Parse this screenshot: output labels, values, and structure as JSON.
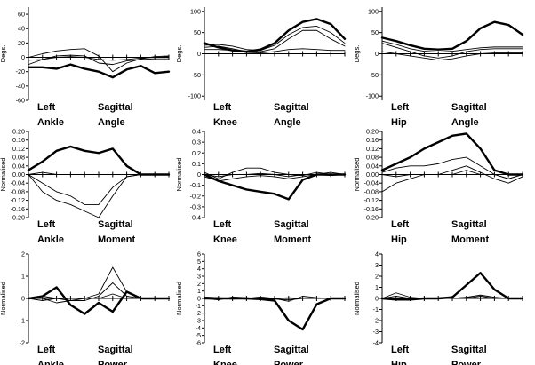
{
  "chart_data": [
    {
      "id": "ankle-angle",
      "type": "line",
      "ylabel": "Degs.",
      "title_lines": [
        [
          "Left",
          "Sagittal"
        ],
        [
          "Ankle",
          "Angle"
        ]
      ],
      "ylim": [
        -60,
        70
      ],
      "yticks": [
        60,
        40,
        20,
        0,
        -20,
        -40,
        -60
      ],
      "x": [
        0,
        10,
        20,
        30,
        40,
        50,
        60,
        70,
        80,
        90,
        100
      ],
      "series": [
        {
          "values": [
            -14,
            -14,
            -16,
            -10,
            -16,
            -20,
            -28,
            -17,
            -12,
            -22,
            -20
          ],
          "weight": "bold"
        },
        {
          "values": [
            0,
            5,
            9,
            11,
            12,
            2,
            -20,
            -8,
            -2,
            1,
            2
          ],
          "weight": "thin"
        },
        {
          "values": [
            -10,
            -3,
            2,
            3,
            2,
            -8,
            -10,
            -5,
            -3,
            -2,
            -2
          ],
          "weight": "thin"
        },
        {
          "values": [
            -4,
            -3,
            0,
            1,
            0,
            -3,
            -4,
            -3,
            -1,
            0,
            1
          ],
          "weight": "thin"
        }
      ]
    },
    {
      "id": "knee-angle",
      "type": "line",
      "ylabel": "Degs.",
      "title_lines": [
        [
          "Left",
          "Sagittal"
        ],
        [
          "Knee",
          "Angle"
        ]
      ],
      "ylim": [
        -110,
        110
      ],
      "yticks": [
        100,
        50,
        0,
        -50,
        -100
      ],
      "x": [
        0,
        10,
        20,
        30,
        40,
        50,
        60,
        70,
        80,
        90,
        100
      ],
      "series": [
        {
          "values": [
            25,
            15,
            8,
            5,
            10,
            25,
            55,
            75,
            82,
            70,
            35
          ],
          "weight": "bold"
        },
        {
          "values": [
            20,
            22,
            18,
            10,
            8,
            20,
            45,
            62,
            65,
            50,
            25
          ],
          "weight": "thin"
        },
        {
          "values": [
            15,
            18,
            12,
            5,
            5,
            12,
            35,
            55,
            55,
            35,
            18
          ],
          "weight": "thin"
        },
        {
          "values": [
            10,
            10,
            8,
            3,
            2,
            5,
            10,
            12,
            10,
            8,
            8
          ],
          "weight": "thin"
        }
      ]
    },
    {
      "id": "hip-angle",
      "type": "line",
      "ylabel": "Degs.",
      "title_lines": [
        [
          "Left",
          "Sagittal"
        ],
        [
          "Hip",
          "Angle"
        ]
      ],
      "ylim": [
        -110,
        110
      ],
      "yticks": [
        100,
        50,
        0,
        -50,
        -100
      ],
      "x": [
        0,
        10,
        20,
        30,
        40,
        50,
        60,
        70,
        80,
        90,
        100
      ],
      "series": [
        {
          "values": [
            38,
            30,
            20,
            12,
            10,
            12,
            30,
            60,
            75,
            68,
            45
          ],
          "weight": "bold"
        },
        {
          "values": [
            30,
            22,
            12,
            6,
            4,
            6,
            10,
            14,
            16,
            16,
            16
          ],
          "weight": "thin"
        },
        {
          "values": [
            25,
            15,
            5,
            -5,
            -10,
            -5,
            5,
            10,
            12,
            12,
            12
          ],
          "weight": "thin"
        },
        {
          "values": [
            5,
            0,
            -5,
            -10,
            -15,
            -12,
            -5,
            0,
            2,
            2,
            2
          ],
          "weight": "thin"
        }
      ]
    },
    {
      "id": "ankle-moment",
      "type": "line",
      "ylabel": "Normalised",
      "title_lines": [
        [
          "Left",
          "Sagittal"
        ],
        [
          "Ankle",
          "Moment"
        ]
      ],
      "ylim": [
        -0.2,
        0.2
      ],
      "yticks": [
        0.2,
        0.16,
        0.12,
        0.08,
        0.04,
        0.0,
        -0.04,
        -0.08,
        -0.12,
        -0.16,
        -0.2
      ],
      "ytick_labels": [
        "0.20",
        "0.16",
        "0.12",
        "0.08",
        "0.04",
        "0.00",
        "-0.04",
        "-0.08",
        "-0.12",
        "-0.16",
        "-0.20"
      ],
      "x": [
        0,
        10,
        20,
        30,
        40,
        50,
        60,
        70,
        80,
        90,
        100
      ],
      "series": [
        {
          "values": [
            0.02,
            0.06,
            0.11,
            0.13,
            0.11,
            0.1,
            0.12,
            0.04,
            0.0,
            0.0,
            0.0
          ],
          "weight": "bold"
        },
        {
          "values": [
            0.0,
            -0.08,
            -0.12,
            -0.14,
            -0.17,
            -0.2,
            -0.1,
            -0.01,
            0.0,
            0.0,
            0.0
          ],
          "weight": "thin"
        },
        {
          "values": [
            0.0,
            -0.04,
            -0.08,
            -0.1,
            -0.14,
            -0.14,
            -0.06,
            -0.01,
            0.0,
            0.0,
            0.0
          ],
          "weight": "thin"
        },
        {
          "values": [
            0.0,
            0.01,
            0.0,
            0.0,
            0.0,
            0.0,
            0.0,
            0.0,
            0.0,
            0.0,
            0.0
          ],
          "weight": "thin"
        }
      ]
    },
    {
      "id": "knee-moment",
      "type": "line",
      "ylabel": "Normalised",
      "title_lines": [
        [
          "Left",
          "Sagittal"
        ],
        [
          "Knee",
          "Moment"
        ]
      ],
      "ylim": [
        -0.4,
        0.4
      ],
      "yticks": [
        0.4,
        0.3,
        0.2,
        0.1,
        0.0,
        -0.1,
        -0.2,
        -0.3,
        -0.4
      ],
      "ytick_labels": [
        "0.4",
        "0.3",
        "0.2",
        "0.1",
        "0",
        "-0.1",
        "-0.2",
        "-0.3",
        "-0.4"
      ],
      "x": [
        0,
        10,
        20,
        30,
        40,
        50,
        60,
        70,
        80,
        90,
        100
      ],
      "series": [
        {
          "values": [
            0.0,
            -0.06,
            -0.1,
            -0.14,
            -0.16,
            -0.18,
            -0.23,
            -0.05,
            0.0,
            0.0,
            0.0
          ],
          "weight": "bold"
        },
        {
          "values": [
            0.02,
            -0.04,
            0.02,
            0.06,
            0.06,
            0.02,
            0.0,
            -0.01,
            0.02,
            0.0,
            0.0
          ],
          "weight": "thin"
        },
        {
          "values": [
            -0.02,
            -0.06,
            -0.04,
            -0.02,
            -0.01,
            -0.02,
            -0.04,
            -0.02,
            0.0,
            0.02,
            0.0
          ],
          "weight": "thin"
        },
        {
          "values": [
            0.0,
            -0.02,
            0.0,
            0.0,
            0.01,
            0.0,
            -0.02,
            0.0,
            0.0,
            -0.01,
            0.0
          ],
          "weight": "thin"
        }
      ]
    },
    {
      "id": "hip-moment",
      "type": "line",
      "ylabel": "Normalised",
      "title_lines": [
        [
          "Left",
          "Sagittal"
        ],
        [
          "Hip",
          "Moment"
        ]
      ],
      "ylim": [
        -0.2,
        0.2
      ],
      "yticks": [
        0.2,
        0.16,
        0.12,
        0.08,
        0.04,
        0.0,
        -0.04,
        -0.08,
        -0.12,
        -0.16,
        -0.2
      ],
      "ytick_labels": [
        "0.20",
        "0.16",
        "0.12",
        "0.08",
        "0.04",
        "0.00",
        "-0.04",
        "-0.08",
        "-0.12",
        "-0.16",
        "-0.20"
      ],
      "x": [
        0,
        10,
        20,
        30,
        40,
        50,
        60,
        70,
        80,
        90,
        100
      ],
      "series": [
        {
          "values": [
            0.02,
            0.05,
            0.08,
            0.12,
            0.15,
            0.18,
            0.19,
            0.12,
            0.02,
            0.0,
            0.0
          ],
          "weight": "bold"
        },
        {
          "values": [
            0.01,
            0.03,
            0.04,
            0.04,
            0.05,
            0.07,
            0.08,
            0.04,
            0.0,
            -0.02,
            0.0
          ],
          "weight": "thin"
        },
        {
          "values": [
            -0.08,
            -0.04,
            -0.02,
            0.0,
            0.0,
            0.02,
            0.04,
            0.01,
            -0.02,
            -0.04,
            -0.01
          ],
          "weight": "thin"
        },
        {
          "values": [
            0.0,
            -0.01,
            0.0,
            0.0,
            0.0,
            0.0,
            0.02,
            0.0,
            0.0,
            -0.02,
            0.0
          ],
          "weight": "thin"
        }
      ]
    },
    {
      "id": "ankle-power",
      "type": "line",
      "ylabel": "Normalised",
      "title_lines": [
        [
          "Left",
          "Sagittal"
        ],
        [
          "Ankle",
          "Power"
        ]
      ],
      "ylim": [
        -2,
        2
      ],
      "yticks": [
        2,
        1,
        0,
        -1,
        -2
      ],
      "x": [
        0,
        10,
        20,
        30,
        40,
        50,
        60,
        70,
        80,
        90,
        100
      ],
      "series": [
        {
          "values": [
            0.0,
            0.1,
            0.5,
            -0.3,
            -0.7,
            -0.2,
            -0.6,
            0.3,
            0.0,
            0.0,
            0.0
          ],
          "weight": "bold"
        },
        {
          "values": [
            0.0,
            -0.1,
            0.0,
            -0.1,
            0.0,
            0.2,
            1.4,
            0.3,
            0.0,
            0.0,
            0.0
          ],
          "weight": "thin"
        },
        {
          "values": [
            0.0,
            0.0,
            -0.2,
            -0.1,
            -0.1,
            0.1,
            0.7,
            0.1,
            0.0,
            0.0,
            0.0
          ],
          "weight": "thin"
        },
        {
          "values": [
            0.0,
            0.1,
            0.0,
            0.0,
            0.0,
            0.0,
            0.2,
            0.0,
            0.0,
            0.0,
            0.0
          ],
          "weight": "thin"
        }
      ]
    },
    {
      "id": "knee-power",
      "type": "line",
      "ylabel": "Normalised",
      "title_lines": [
        [
          "Left",
          "Sagittal"
        ],
        [
          "Knee",
          "Power"
        ]
      ],
      "ylim": [
        -6,
        6
      ],
      "yticks": [
        6,
        5,
        4,
        3,
        2,
        1,
        0,
        -1,
        -2,
        -3,
        -4,
        -5,
        -6
      ],
      "x": [
        0,
        10,
        20,
        30,
        40,
        50,
        60,
        70,
        80,
        90,
        100
      ],
      "series": [
        {
          "values": [
            0.0,
            0.0,
            0.0,
            0.0,
            -0.1,
            -0.3,
            -3.0,
            -4.2,
            -0.8,
            0.0,
            0.0
          ],
          "weight": "bold"
        },
        {
          "values": [
            0.2,
            0.1,
            -0.1,
            0.0,
            0.2,
            0.0,
            -0.4,
            0.3,
            0.1,
            0.0,
            0.0
          ],
          "weight": "thin"
        },
        {
          "values": [
            0.0,
            -0.2,
            0.2,
            0.1,
            0.0,
            -0.1,
            -0.2,
            0.0,
            0.0,
            0.0,
            0.0
          ],
          "weight": "thin"
        },
        {
          "values": [
            0.0,
            0.1,
            0.0,
            -0.1,
            0.0,
            0.0,
            0.1,
            0.0,
            0.0,
            0.0,
            0.0
          ],
          "weight": "thin"
        }
      ]
    },
    {
      "id": "hip-power",
      "type": "line",
      "ylabel": "Normalised",
      "title_lines": [
        [
          "Left",
          "Sagittal"
        ],
        [
          "Hip",
          "Power"
        ]
      ],
      "ylim": [
        -4,
        4
      ],
      "yticks": [
        4,
        3,
        2,
        1,
        0,
        -1,
        -2,
        -3,
        -4
      ],
      "x": [
        0,
        10,
        20,
        30,
        40,
        50,
        60,
        70,
        80,
        90,
        100
      ],
      "series": [
        {
          "values": [
            0.0,
            -0.1,
            -0.1,
            0.0,
            0.0,
            0.1,
            1.2,
            2.3,
            0.8,
            0.0,
            0.0
          ],
          "weight": "bold"
        },
        {
          "values": [
            0.0,
            0.5,
            0.1,
            0.0,
            0.0,
            0.0,
            0.1,
            0.3,
            0.1,
            0.0,
            0.0
          ],
          "weight": "thin"
        },
        {
          "values": [
            0.0,
            0.2,
            0.0,
            0.0,
            0.0,
            0.0,
            0.0,
            0.2,
            0.0,
            0.0,
            0.0
          ],
          "weight": "thin"
        },
        {
          "values": [
            0.0,
            -0.1,
            0.0,
            0.0,
            0.0,
            0.0,
            0.1,
            0.0,
            0.0,
            0.0,
            0.0
          ],
          "weight": "thin"
        }
      ]
    }
  ]
}
